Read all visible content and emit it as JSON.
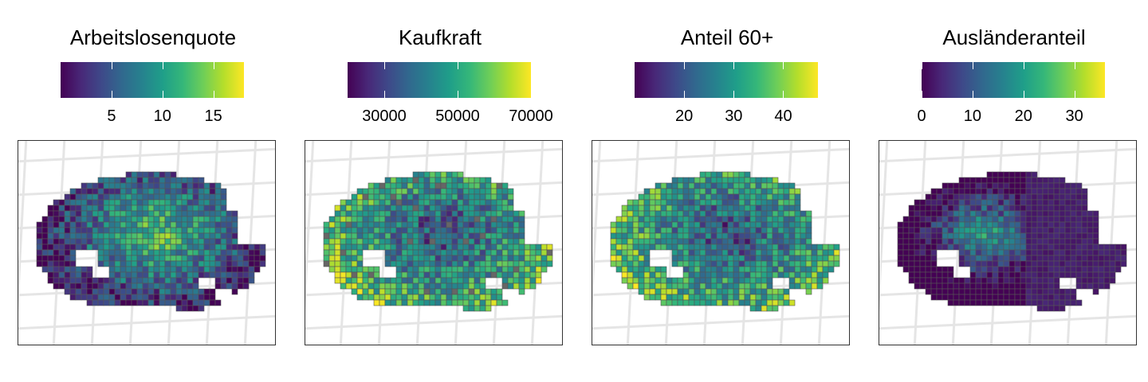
{
  "figure": "Berlin district grid maps",
  "panels": [
    {
      "id": "arbeitslosenquote",
      "title": "Arbeitslosenquote",
      "scale": {
        "min": 0,
        "max": 18,
        "ticks": [
          5,
          10,
          15
        ]
      },
      "tick_labels": [
        "5",
        "10",
        "15"
      ],
      "palette": "viridis",
      "spatial_pattern": "high-center"
    },
    {
      "id": "kaufkraft",
      "title": "Kaufkraft",
      "scale": {
        "min": 20000,
        "max": 70000,
        "ticks": [
          30000,
          50000,
          70000
        ]
      },
      "tick_labels": [
        "30000",
        "50000",
        "70000"
      ],
      "palette": "viridis",
      "spatial_pattern": "high-edges",
      "missing_color": "#666666"
    },
    {
      "id": "anteil60",
      "title": "Anteil 60+",
      "scale": {
        "min": 10,
        "max": 47,
        "ticks": [
          20,
          30,
          40
        ]
      },
      "tick_labels": [
        "20",
        "30",
        "40"
      ],
      "palette": "viridis",
      "spatial_pattern": "high-edges"
    },
    {
      "id": "auslaenderanteil",
      "title": "Ausländeranteil",
      "scale": {
        "min": 0,
        "max": 36,
        "ticks": [
          0,
          10,
          20,
          30
        ]
      },
      "tick_labels": [
        "0",
        "10",
        "20",
        "30"
      ],
      "palette": "viridis",
      "spatial_pattern": "high-inner-west"
    }
  ],
  "colors": {
    "viridis": [
      "#440154",
      "#482878",
      "#3e4989",
      "#31688e",
      "#26828e",
      "#1f9e89",
      "#35b779",
      "#6ece58",
      "#b5de2b",
      "#fde725"
    ],
    "cell_border": "#555555",
    "gridlines": "#e5e5e5",
    "frame": "#333333"
  }
}
